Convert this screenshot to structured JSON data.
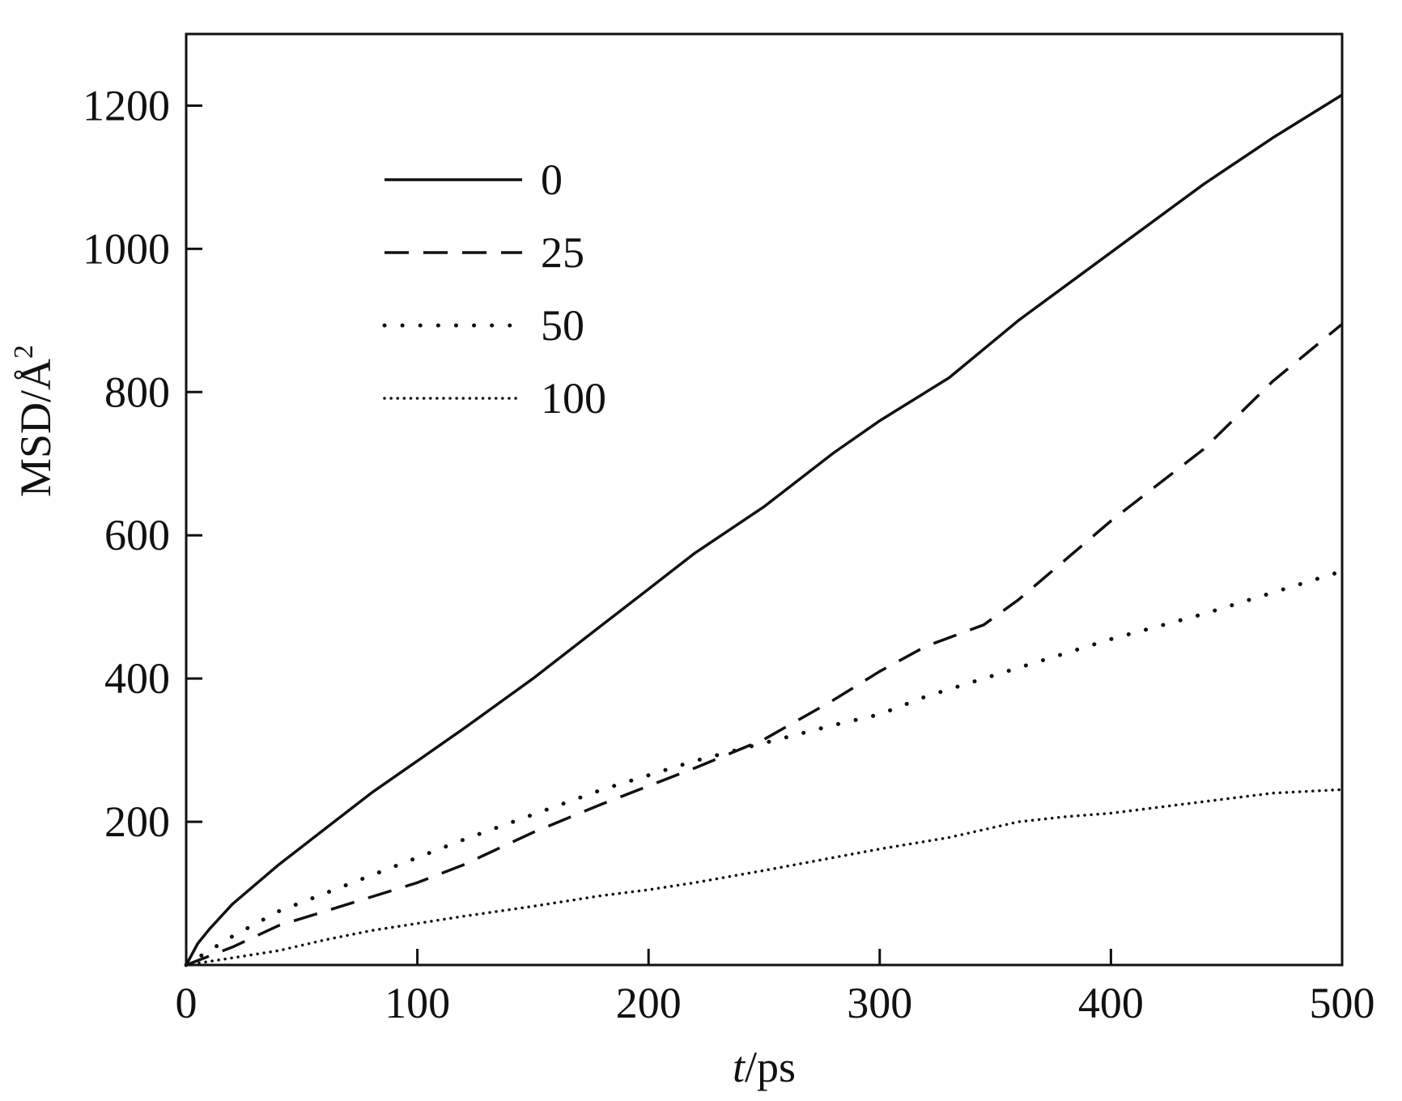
{
  "chart_data": {
    "type": "line",
    "title": "",
    "xlabel_italic": "t",
    "xlabel_unit": "/ps",
    "ylabel": "MSD/Å",
    "ylabel_superscript": "2",
    "xlim": [
      0,
      500
    ],
    "ylim": [
      0,
      1300
    ],
    "x_ticks": [
      0,
      100,
      200,
      300,
      400,
      500
    ],
    "x_tick_labels": [
      "0",
      "100",
      "200",
      "300",
      "400",
      "500"
    ],
    "y_ticks": [
      200,
      400,
      600,
      800,
      1000,
      1200
    ],
    "y_tick_labels": [
      "200",
      "400",
      "600",
      "800",
      "1000",
      "1200"
    ],
    "grid": false,
    "legend_position": "top-left",
    "series": [
      {
        "name": "0",
        "style": "solid",
        "x": [
          0,
          5,
          10,
          20,
          40,
          60,
          80,
          100,
          120,
          150,
          180,
          200,
          220,
          250,
          280,
          300,
          330,
          360,
          400,
          440,
          470,
          500
        ],
        "y": [
          0,
          30,
          50,
          85,
          140,
          190,
          240,
          285,
          330,
          400,
          475,
          525,
          575,
          640,
          715,
          760,
          820,
          900,
          995,
          1090,
          1155,
          1215
        ]
      },
      {
        "name": "25",
        "style": "dashed",
        "x": [
          0,
          20,
          40,
          60,
          80,
          100,
          120,
          150,
          180,
          200,
          220,
          250,
          280,
          300,
          320,
          345,
          360,
          400,
          440,
          470,
          500
        ],
        "y": [
          0,
          25,
          55,
          75,
          95,
          115,
          140,
          185,
          225,
          250,
          275,
          315,
          370,
          410,
          445,
          475,
          510,
          620,
          720,
          815,
          895
        ]
      },
      {
        "name": "50",
        "style": "dotted",
        "x": [
          0,
          20,
          40,
          60,
          80,
          100,
          120,
          150,
          180,
          200,
          220,
          250,
          280,
          300,
          320,
          350,
          380,
          400,
          440,
          470,
          500
        ],
        "y": [
          0,
          40,
          75,
          100,
          125,
          150,
          175,
          210,
          245,
          265,
          285,
          310,
          335,
          350,
          375,
          405,
          435,
          455,
          490,
          520,
          550
        ]
      },
      {
        "name": "100",
        "style": "fine-dotted",
        "x": [
          0,
          20,
          40,
          60,
          80,
          100,
          120,
          150,
          180,
          200,
          220,
          250,
          280,
          300,
          330,
          360,
          380,
          400,
          440,
          470,
          500
        ],
        "y": [
          0,
          10,
          20,
          35,
          48,
          58,
          68,
          82,
          97,
          105,
          115,
          132,
          150,
          162,
          178,
          200,
          207,
          212,
          228,
          240,
          245
        ]
      }
    ]
  }
}
